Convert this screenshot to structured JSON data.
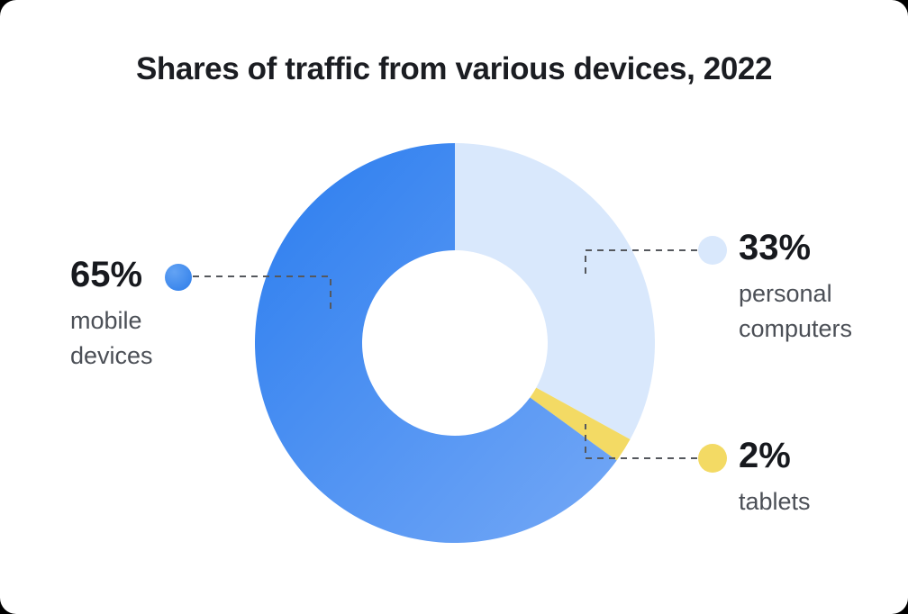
{
  "title": "Shares of traffic from various devices, 2022",
  "chart_data": {
    "type": "pie",
    "subtype": "donut",
    "title": "Shares of traffic from various devices, 2022",
    "unit": "%",
    "start_angle_deg": 0,
    "direction": "clockwise",
    "donut_hole_ratio": 0.464,
    "legend_position": "callouts-left-right",
    "slices": [
      {
        "id": "personal-computers",
        "label": "personal computers",
        "value": 33,
        "percent_label": "33%",
        "color": "#d9e8fc"
      },
      {
        "id": "tablets",
        "label": "tablets",
        "value": 2,
        "percent_label": "2%",
        "color": "#f3da64"
      },
      {
        "id": "mobile-devices",
        "label": "mobile devices",
        "value": 65,
        "percent_label": "65%",
        "color": "#2b7def",
        "color_end": "#74a8f6"
      }
    ]
  },
  "colors": {
    "leader_line": "#55585d",
    "bubble_mobile_start": "#63a3f4",
    "bubble_mobile_end": "#2c7ce9"
  }
}
